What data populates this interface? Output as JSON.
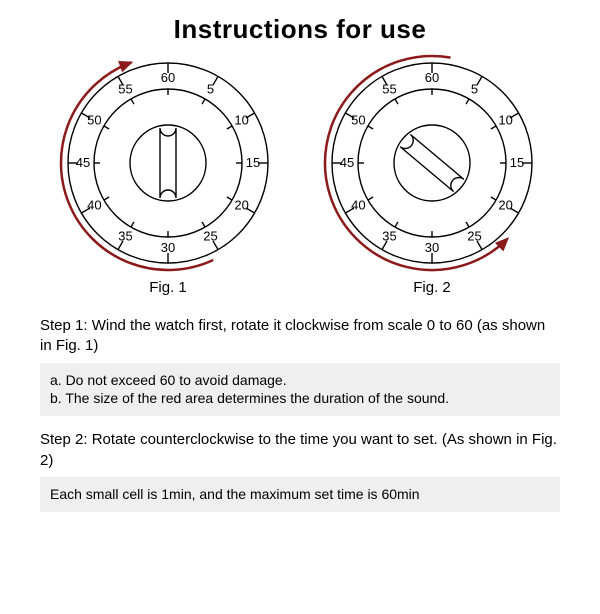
{
  "title": "Instructions for use",
  "dial": {
    "outer_radius": 100,
    "inner_radius": 74,
    "tick_major_len": 10,
    "tick_minor_len": 6,
    "numbers": [
      {
        "v": "60",
        "angle": 0
      },
      {
        "v": "5",
        "angle": -30
      },
      {
        "v": "10",
        "angle": -60
      },
      {
        "v": "15",
        "angle": -90
      },
      {
        "v": "20",
        "angle": -120
      },
      {
        "v": "25",
        "angle": -150
      },
      {
        "v": "30",
        "angle": 180
      },
      {
        "v": "35",
        "angle": 150
      },
      {
        "v": "40",
        "angle": 120
      },
      {
        "v": "45",
        "angle": 90
      },
      {
        "v": "50",
        "angle": 60
      },
      {
        "v": "55",
        "angle": 30
      }
    ],
    "label_fontsize": 13,
    "stroke_color": "#000000",
    "stroke_width": 1.4,
    "knob_fill": "#ffffff",
    "knob_radius": 38,
    "knob_indicator_halfwidth": 8
  },
  "fig1": {
    "caption": "Fig. 1",
    "knob_angle_deg": 0,
    "arrow_direction": "clockwise",
    "arrow_start_angle": 155,
    "arrow_end_angle": -20,
    "arrow_radius": 107,
    "arrow_color": "#8b1a1a",
    "arrow_width": 2.5
  },
  "fig2": {
    "caption": "Fig. 2",
    "knob_angle_deg": 130,
    "arrow_direction": "counterclockwise",
    "arrow_start_angle": 10,
    "arrow_end_angle": 135,
    "arrow_radius": 107,
    "arrow_color": "#8b1a1a",
    "arrow_width": 2.5
  },
  "steps": {
    "step1_text": "Step 1: Wind the watch first, rotate it clockwise from scale 0 to 60 (as shown in Fig. 1)",
    "step1_note": "a. Do not exceed 60 to avoid damage.\nb. The size of the red area determines the duration of the sound.",
    "step2_text": "Step 2: Rotate counterclockwise to the time you want to set. (As shown in Fig. 2)",
    "step2_note": "Each small cell is 1min, and the maximum set time is 60min"
  },
  "colors": {
    "background": "#ffffff",
    "text": "#000000",
    "note_bg": "#efefef"
  }
}
